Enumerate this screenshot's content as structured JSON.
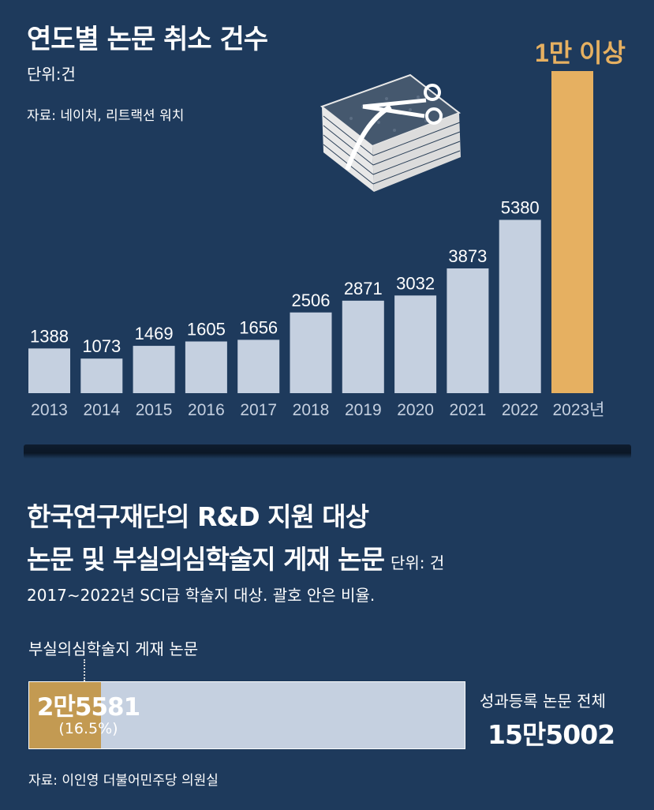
{
  "top_chart": {
    "title": "연도별 논문 취소 건수",
    "unit": "단위:건",
    "source": "자료: 네이처, 리트랙션 워치",
    "highlight_label": "1만 이상",
    "year_suffix": "년"
  },
  "bottom_chart": {
    "title_line1": "한국연구재단의 R&D 지원 대상",
    "title_line2": "논문 및 부실의심학술지 게재 논문",
    "unit": "단위: 건",
    "note": "2017∼2022년 SCI급 학술지 대상. 괄호 안은 비율.",
    "subset_label": "부실의심학술지 게재 논문",
    "subset_value": "2만5581",
    "subset_ratio": "(16.5%)",
    "total_label": "성과등록 논문 전체",
    "total_value": "15만5002",
    "source": "자료: 이인영 더불어민주당 의원실"
  },
  "colors": {
    "background": "#1e3a5c",
    "bar": "#c5d0e0",
    "highlight_bar": "#e6b061",
    "highlight_text": "#e6b061",
    "subset_bar": "#c39a52"
  },
  "icon": "book-with-scissors-icon",
  "chart_data": [
    {
      "type": "bar",
      "title": "연도별 논문 취소 건수",
      "unit": "단위:건",
      "categories": [
        "2013",
        "2014",
        "2015",
        "2016",
        "2017",
        "2018",
        "2019",
        "2020",
        "2021",
        "2022",
        "2023"
      ],
      "values": [
        1388,
        1073,
        1469,
        1605,
        1656,
        2506,
        2871,
        3032,
        3873,
        5380,
        10000
      ],
      "value_labels": [
        "1388",
        "1073",
        "1469",
        "1605",
        "1656",
        "2506",
        "2871",
        "3032",
        "3873",
        "5380",
        "1만 이상"
      ],
      "highlight_index": 10,
      "ylim": [
        0,
        10000
      ],
      "grid": false
    },
    {
      "type": "bar",
      "orientation": "horizontal-stacked",
      "title": "한국연구재단의 R&D 지원 대상 논문 및 부실의심학술지 게재 논문",
      "unit": "단위: 건",
      "total": 155002,
      "subset": 25581,
      "subset_share": 0.165
    }
  ]
}
